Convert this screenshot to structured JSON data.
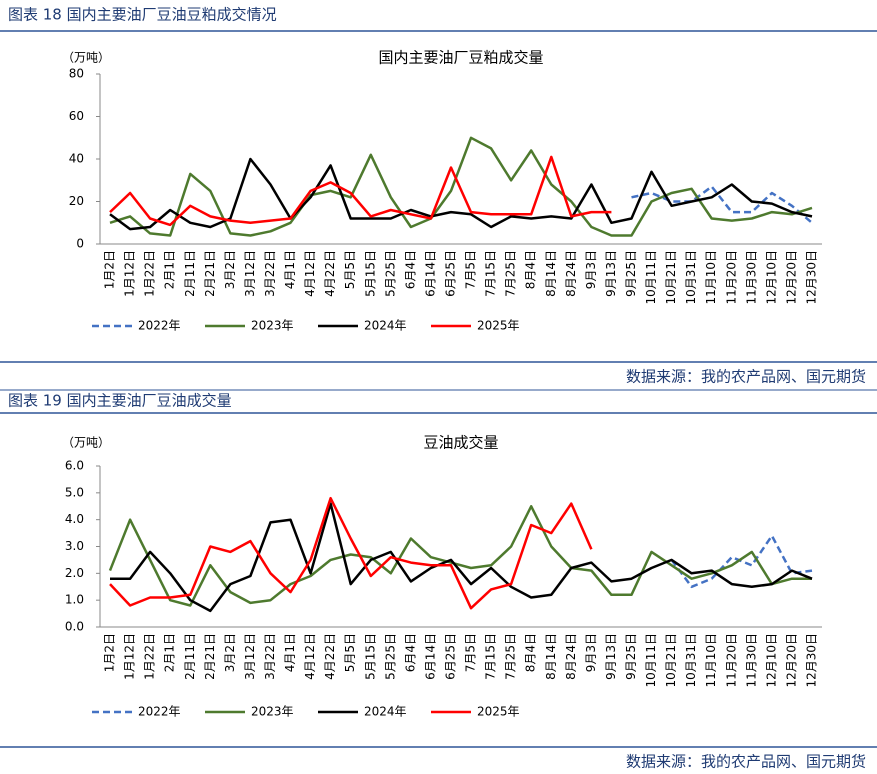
{
  "sections": [
    {
      "header": "图表 18 国内主要油厂豆油豆粕成交情况",
      "source": "数据来源：我的农产品网、国元期货"
    },
    {
      "header": "图表 19 国内主要油厂豆油成交量",
      "source": "数据来源：我的农产品网、国元期货"
    }
  ],
  "chart_data": [
    {
      "type": "line",
      "title": "国内主要油厂豆粕成交量",
      "y_unit": "（万吨）",
      "categories": [
        "1月2日",
        "1月12日",
        "1月22日",
        "2月1日",
        "2月11日",
        "2月21日",
        "3月2日",
        "3月12日",
        "3月22日",
        "4月1日",
        "4月12日",
        "4月22日",
        "5月5日",
        "5月15日",
        "5月25日",
        "6月4日",
        "6月14日",
        "6月25日",
        "7月5日",
        "7月15日",
        "7月25日",
        "8月4日",
        "8月14日",
        "8月24日",
        "9月3日",
        "9月13日",
        "9月25日",
        "10月11日",
        "10月21日",
        "10月31日",
        "11月10日",
        "11月20日",
        "11月30日",
        "12月10日",
        "12月20日",
        "12月30日"
      ],
      "ylim": [
        0,
        80
      ],
      "yticks": [
        0,
        20,
        40,
        60,
        80
      ],
      "legend": "bottom",
      "series": [
        {
          "name": "2022年",
          "color": "#4472c4",
          "dashed": true,
          "values": [
            null,
            null,
            null,
            null,
            null,
            null,
            null,
            null,
            null,
            null,
            null,
            null,
            null,
            null,
            null,
            null,
            null,
            null,
            null,
            null,
            null,
            null,
            null,
            null,
            null,
            null,
            22,
            24,
            20,
            20,
            27,
            15,
            15,
            24,
            18,
            10
          ]
        },
        {
          "name": "2023年",
          "color": "#4e7a2e",
          "dashed": false,
          "values": [
            10,
            13,
            5,
            4,
            33,
            25,
            5,
            4,
            6,
            10,
            23,
            25,
            22,
            42,
            22,
            8,
            12,
            25,
            50,
            45,
            30,
            44,
            28,
            20,
            8,
            4,
            4,
            20,
            24,
            26,
            12,
            11,
            12,
            15,
            14,
            17
          ]
        },
        {
          "name": "2024年",
          "color": "#000000",
          "dashed": false,
          "values": [
            14,
            7,
            8,
            16,
            10,
            8,
            12,
            40,
            28,
            12,
            22,
            37,
            12,
            12,
            12,
            16,
            13,
            15,
            14,
            8,
            13,
            12,
            13,
            12,
            28,
            10,
            12,
            34,
            18,
            20,
            22,
            28,
            20,
            19,
            15,
            13
          ]
        },
        {
          "name": "2025年",
          "color": "#ff0000",
          "dashed": false,
          "values": [
            15,
            24,
            12,
            9,
            18,
            13,
            11,
            10,
            11,
            12,
            25,
            29,
            24,
            13,
            16,
            14,
            12,
            36,
            15,
            14,
            14,
            14,
            41,
            13,
            15,
            15,
            null,
            null,
            null,
            null,
            null,
            null,
            null,
            null,
            null,
            null
          ]
        }
      ]
    },
    {
      "type": "line",
      "title": "豆油成交量",
      "y_unit": "（万吨）",
      "categories": [
        "1月2日",
        "1月12日",
        "1月22日",
        "2月1日",
        "2月11日",
        "2月21日",
        "3月2日",
        "3月12日",
        "3月22日",
        "4月1日",
        "4月12日",
        "4月22日",
        "5月5日",
        "5月15日",
        "5月25日",
        "6月4日",
        "6月14日",
        "6月25日",
        "7月5日",
        "7月15日",
        "7月25日",
        "8月4日",
        "8月14日",
        "8月24日",
        "9月3日",
        "9月13日",
        "9月25日",
        "10月11日",
        "10月21日",
        "10月31日",
        "11月10日",
        "11月20日",
        "11月30日",
        "12月10日",
        "12月20日",
        "12月30日"
      ],
      "ylim": [
        0,
        6
      ],
      "yticks": [
        {
          "value": 0,
          "label": "0.0"
        },
        {
          "value": 1,
          "label": "1.0"
        },
        {
          "value": 2,
          "label": "2.0"
        },
        {
          "value": 3,
          "label": "3.0"
        },
        {
          "value": 4,
          "label": "4.0"
        },
        {
          "value": 5,
          "label": "5.0"
        },
        {
          "value": 6,
          "label": "6.0"
        }
      ],
      "legend": "bottom",
      "series": [
        {
          "name": "2022年",
          "color": "#4472c4",
          "dashed": true,
          "values": [
            null,
            null,
            null,
            null,
            null,
            null,
            null,
            null,
            null,
            null,
            null,
            null,
            null,
            null,
            null,
            null,
            null,
            null,
            null,
            null,
            null,
            null,
            null,
            null,
            null,
            null,
            null,
            null,
            2.5,
            1.5,
            1.8,
            2.6,
            2.3,
            3.4,
            2.0,
            2.1
          ]
        },
        {
          "name": "2023年",
          "color": "#4e7a2e",
          "dashed": false,
          "values": [
            2.1,
            4.0,
            2.5,
            1.0,
            0.8,
            2.3,
            1.3,
            0.9,
            1.0,
            1.6,
            1.9,
            2.5,
            2.7,
            2.6,
            2.0,
            3.3,
            2.6,
            2.4,
            2.2,
            2.3,
            3.0,
            4.5,
            3.0,
            2.2,
            2.1,
            1.2,
            1.2,
            2.8,
            2.3,
            1.8,
            2.0,
            2.3,
            2.8,
            1.6,
            1.8,
            1.8
          ]
        },
        {
          "name": "2024年",
          "color": "#000000",
          "dashed": false,
          "values": [
            1.8,
            1.8,
            2.8,
            2.0,
            1.0,
            0.6,
            1.6,
            1.9,
            3.9,
            4.0,
            2.0,
            4.6,
            1.6,
            2.5,
            2.8,
            1.7,
            2.2,
            2.5,
            1.6,
            2.2,
            1.5,
            1.1,
            1.2,
            2.2,
            2.4,
            1.7,
            1.8,
            2.2,
            2.5,
            2.0,
            2.1,
            1.6,
            1.5,
            1.6,
            2.1,
            1.8
          ]
        },
        {
          "name": "2025年",
          "color": "#ff0000",
          "dashed": false,
          "values": [
            1.6,
            0.8,
            1.1,
            1.1,
            1.2,
            3.0,
            2.8,
            3.2,
            2.0,
            1.3,
            2.5,
            4.8,
            3.3,
            1.9,
            2.6,
            2.4,
            2.3,
            2.3,
            0.7,
            1.4,
            1.6,
            3.8,
            3.5,
            4.6,
            2.9,
            null,
            null,
            null,
            null,
            null,
            null,
            null,
            null,
            null,
            null,
            null
          ]
        }
      ]
    }
  ]
}
